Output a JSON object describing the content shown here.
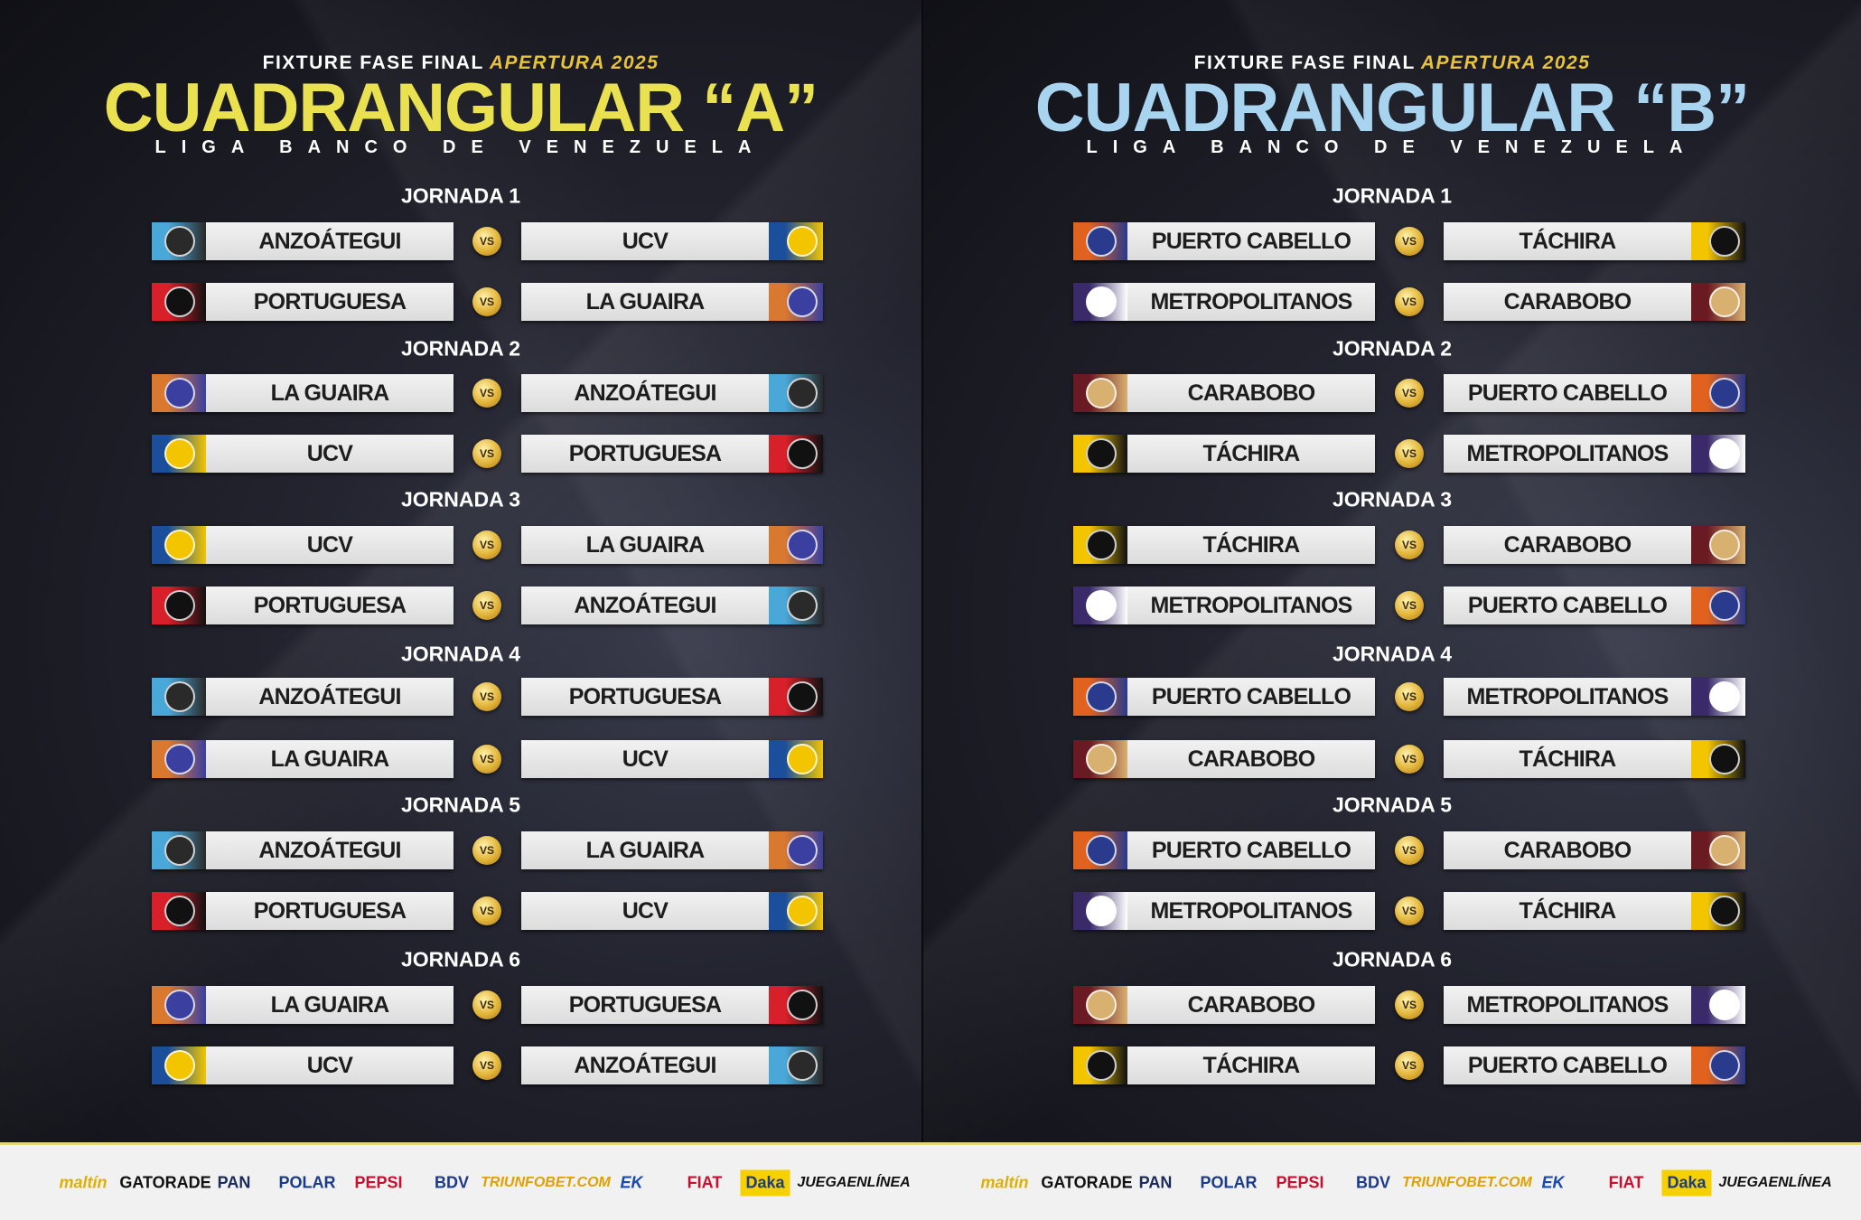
{
  "panels": [
    {
      "subtitle": "FIXTURE FASE FINAL",
      "season": "APERTURA 2025",
      "title": "CUADRANGULAR “A”",
      "title_color": "#e9e14f",
      "league": "LIGA BANCO DE VENEZUELA",
      "jornadas": [
        {
          "label": "JORNADA 1",
          "matches": [
            [
              "ANZOÁTEGUI",
              "UCV"
            ],
            [
              "PORTUGUESA",
              "LA GUAIRA"
            ]
          ]
        },
        {
          "label": "JORNADA 2",
          "matches": [
            [
              "LA GUAIRA",
              "ANZOÁTEGUI"
            ],
            [
              "UCV",
              "PORTUGUESA"
            ]
          ]
        },
        {
          "label": "JORNADA 3",
          "matches": [
            [
              "UCV",
              "LA GUAIRA"
            ],
            [
              "PORTUGUESA",
              "ANZOÁTEGUI"
            ]
          ]
        },
        {
          "label": "JORNADA 4",
          "matches": [
            [
              "ANZOÁTEGUI",
              "PORTUGUESA"
            ],
            [
              "LA GUAIRA",
              "UCV"
            ]
          ]
        },
        {
          "label": "JORNADA 5",
          "matches": [
            [
              "ANZOÁTEGUI",
              "LA GUAIRA"
            ],
            [
              "PORTUGUESA",
              "UCV"
            ]
          ]
        },
        {
          "label": "JORNADA 6",
          "matches": [
            [
              "LA GUAIRA",
              "PORTUGUESA"
            ],
            [
              "UCV",
              "ANZOÁTEGUI"
            ]
          ]
        }
      ]
    },
    {
      "subtitle": "FIXTURE FASE FINAL",
      "season": "APERTURA 2025",
      "title": "CUADRANGULAR “B”",
      "title_color": "#a8d4f0",
      "league": "LIGA BANCO DE VENEZUELA",
      "jornadas": [
        {
          "label": "JORNADA 1",
          "matches": [
            [
              "PUERTO CABELLO",
              "TÁCHIRA"
            ],
            [
              "METROPOLITANOS",
              "CARABOBO"
            ]
          ]
        },
        {
          "label": "JORNADA 2",
          "matches": [
            [
              "CARABOBO",
              "PUERTO CABELLO"
            ],
            [
              "TÁCHIRA",
              "METROPOLITANOS"
            ]
          ]
        },
        {
          "label": "JORNADA 3",
          "matches": [
            [
              "TÁCHIRA",
              "CARABOBO"
            ],
            [
              "METROPOLITANOS",
              "PUERTO CABELLO"
            ]
          ]
        },
        {
          "label": "JORNADA 4",
          "matches": [
            [
              "PUERTO CABELLO",
              "METROPOLITANOS"
            ],
            [
              "CARABOBO",
              "TÁCHIRA"
            ]
          ]
        },
        {
          "label": "JORNADA 5",
          "matches": [
            [
              "PUERTO CABELLO",
              "CARABOBO"
            ],
            [
              "METROPOLITANOS",
              "TÁCHIRA"
            ]
          ]
        },
        {
          "label": "JORNADA 6",
          "matches": [
            [
              "CARABOBO",
              "METROPOLITANOS"
            ],
            [
              "TÁCHIRA",
              "PUERTO CABELLO"
            ]
          ]
        }
      ]
    }
  ],
  "vs_label": "VS",
  "team_colors": {
    "ANZOÁTEGUI": [
      "#4aa8d8",
      "#2a2a2a"
    ],
    "UCV": [
      "#1b4f9c",
      "#f2c500"
    ],
    "PORTUGUESA": [
      "#d8202a",
      "#111111"
    ],
    "LA GUAIRA": [
      "#d9782f",
      "#3a3fa0"
    ],
    "PUERTO CABELLO": [
      "#e0621e",
      "#2a3a8c"
    ],
    "METROPOLITANOS": [
      "#3a2a6a",
      "#ffffff"
    ],
    "CARABOBO": [
      "#6a1a22",
      "#d8b070"
    ],
    "TÁCHIRA": [
      "#f2c500",
      "#111111"
    ]
  },
  "sponsors": [
    "maltín",
    "GATORADE",
    "PAN",
    "POLAR",
    "PEPSI",
    "BDV",
    "TRIUNFOBET.COM",
    "EK",
    "FIAT",
    "Daka",
    "JUEGAENLÍNEA"
  ]
}
